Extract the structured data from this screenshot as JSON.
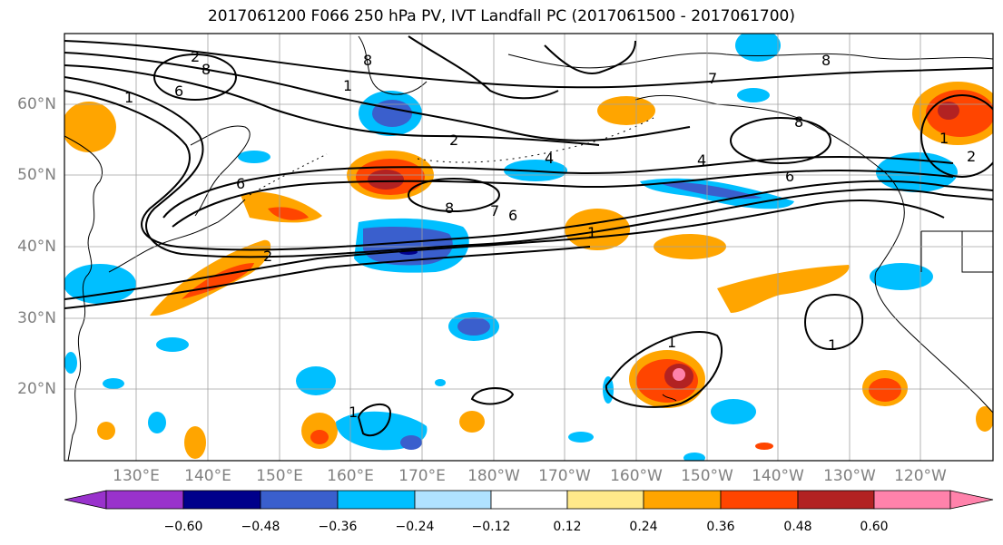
{
  "title": "2017061200 F066 250 hPa PV, IVT Landfall PC (2017061500 - 2017061700)",
  "lat_labels": [
    "60°N",
    "50°N",
    "40°N",
    "30°N",
    "20°N"
  ],
  "lon_labels": [
    "130°E",
    "140°E",
    "150°E",
    "160°E",
    "170°E",
    "180°W",
    "170°W",
    "160°W",
    "150°W",
    "140°W",
    "130°W",
    "120°W"
  ],
  "colorbar": {
    "tick_labels": [
      "−0.60",
      "−0.48",
      "−0.36",
      "−0.24",
      "−0.12",
      "0.12",
      "0.24",
      "0.36",
      "0.48",
      "0.60"
    ],
    "colors": [
      "#9932cc",
      "#00008b",
      "#3a5fcd",
      "#00bfff",
      "#b0e2ff",
      "#ffffff",
      "#ffe98a",
      "#ffa500",
      "#ff4500",
      "#b22222",
      "#ff82ab"
    ]
  },
  "contour_labels": [
    "2",
    "8",
    "1",
    "6",
    "1",
    "8",
    "6",
    "2",
    "4",
    "8",
    "7",
    "6",
    "1",
    "7",
    "4",
    "6",
    "8",
    "2",
    "1",
    "2",
    "8",
    "1",
    "1",
    "1"
  ]
}
